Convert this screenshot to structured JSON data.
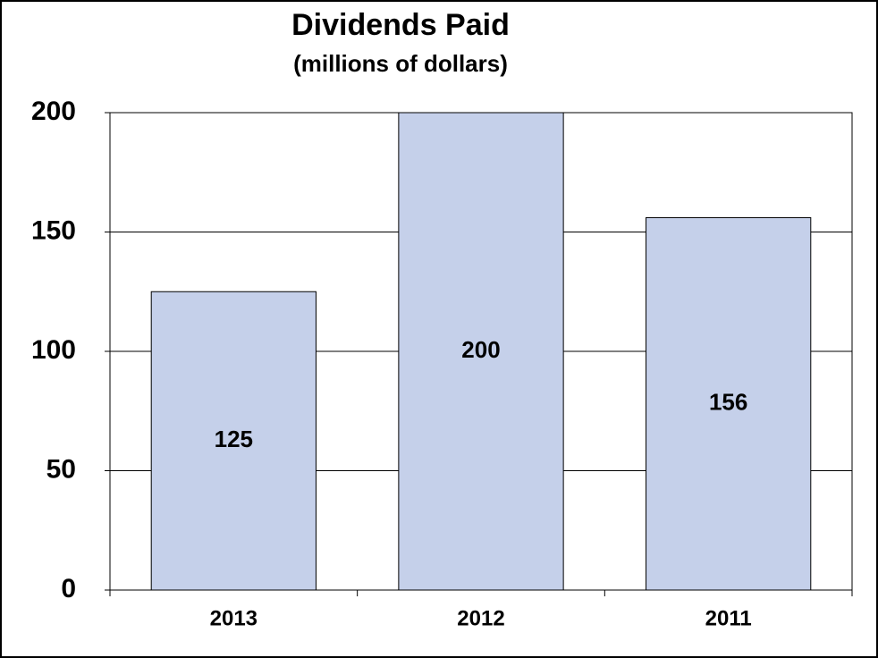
{
  "chart_data": {
    "type": "bar",
    "title": "Dividends Paid",
    "subtitle": "(millions of dollars)",
    "categories": [
      "2013",
      "2012",
      "2011"
    ],
    "values": [
      125,
      200,
      156
    ],
    "color": "#c5d0ea",
    "ylim": [
      0,
      200
    ],
    "yticks": [
      0,
      50,
      100,
      150,
      200
    ],
    "grid": true,
    "data_labels": true
  }
}
